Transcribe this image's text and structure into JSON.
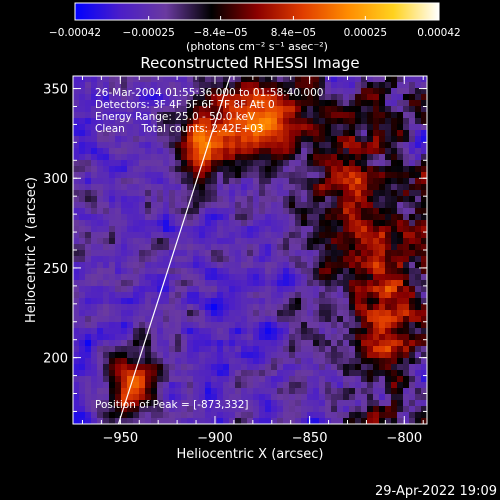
{
  "chart_data": {
    "type": "heatmap",
    "title": "Reconstructed RHESSI Image",
    "xlabel": "Heliocentric X (arcsec)",
    "ylabel": "Heliocentric Y (arcsec)",
    "xlim": [
      -975,
      -788
    ],
    "ylim": [
      163,
      357
    ],
    "x_ticks": [
      -950,
      -900,
      -850,
      -800
    ],
    "y_ticks": [
      200,
      250,
      300,
      350
    ],
    "x_tick_labels": [
      "−950",
      "−900",
      "−850",
      "−800"
    ],
    "y_tick_labels": [
      "200",
      "250",
      "300",
      "350"
    ],
    "colorbar": {
      "range": [
        -0.00042,
        0.00042
      ],
      "tick_labels": [
        "−0.00042",
        "−0.00025",
        "−8.4e−05",
        "8.4e−05",
        "0.00025",
        "0.00042"
      ],
      "unit_label": "(photons cm⁻² s⁻¹ asec⁻²)"
    },
    "annotations": [
      "26-Mar-2004 01:55:36.000 to 01:58:40.000",
      "Detectors: 3F 4F 5F 6F 7F 8F Att 0",
      "Energy Range: 25.0 - 50.0 keV",
      "Clean     Total counts: 2.42E+03",
      "Position of Peak = [-873,332]"
    ],
    "limb_line": [
      [
        -951,
        163
      ],
      [
        -892,
        357
      ]
    ],
    "peak": [
      -873,
      332
    ],
    "sources": [
      {
        "x": -873,
        "y": 332,
        "sx": 14,
        "sy": 16,
        "amp": 1.0
      },
      {
        "x": -905,
        "y": 320,
        "sx": 12,
        "sy": 18,
        "amp": 0.75
      },
      {
        "x": -942,
        "y": 185,
        "sx": 9,
        "sy": 14,
        "amp": 0.85
      },
      {
        "x": -825,
        "y": 280,
        "sx": 18,
        "sy": 40,
        "amp": 0.5
      },
      {
        "x": -808,
        "y": 215,
        "sx": 10,
        "sy": 30,
        "amp": 0.45
      }
    ],
    "timestamp": "29-Apr-2022 19:09"
  },
  "colors": {
    "background": "#000000",
    "foreground": "#ffffff",
    "colormap": [
      "#0000ff",
      "#4b1ec8",
      "#6a3aa0",
      "#000000",
      "#8b0000",
      "#e03c00",
      "#ff8c00",
      "#ffd21e",
      "#ffffff"
    ]
  }
}
